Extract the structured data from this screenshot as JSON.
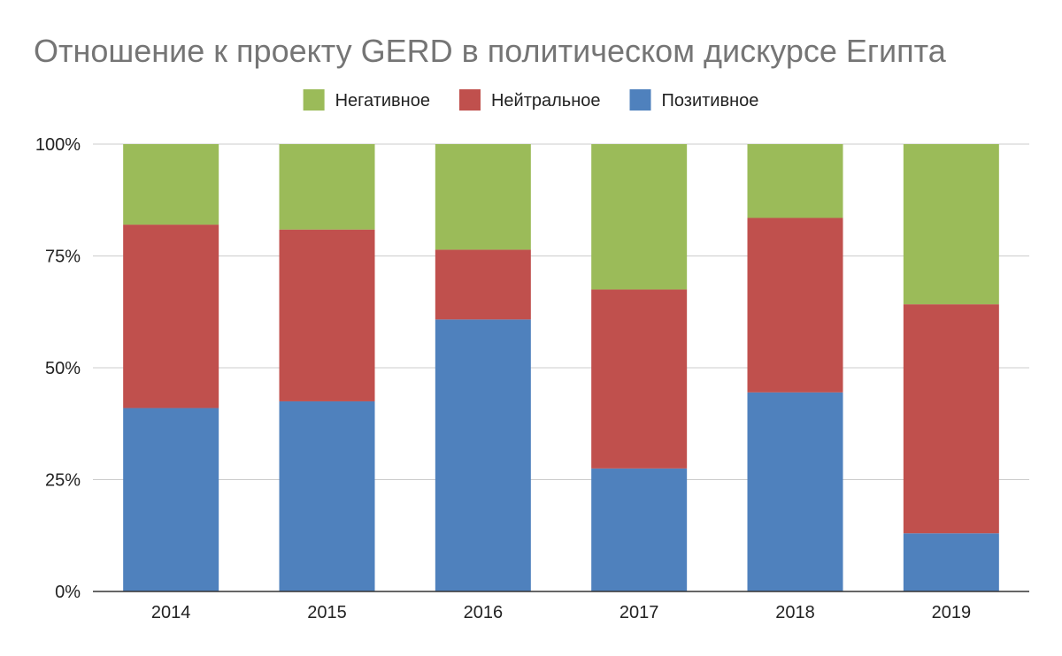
{
  "chart_data": {
    "type": "bar",
    "stacked": true,
    "percent_stacked": true,
    "title": "Отношение к проекту GERD в политическом дискурсе Египта",
    "xlabel": "",
    "ylabel": "",
    "categories": [
      "2014",
      "2015",
      "2016",
      "2017",
      "2018",
      "2019"
    ],
    "series": [
      {
        "name": "Позитивное",
        "color": "#4f81bd",
        "values": [
          41,
          42.5,
          60.8,
          27.5,
          44.5,
          13
        ]
      },
      {
        "name": "Нейтральное",
        "color": "#c0504d",
        "values": [
          41,
          38.4,
          15.6,
          40,
          39,
          51.2
        ]
      },
      {
        "name": "Негативное",
        "color": "#9bbb59",
        "values": [
          18,
          19.1,
          23.6,
          32.5,
          16.5,
          35.8
        ]
      }
    ],
    "legend_order": [
      "Негативное",
      "Нейтральное",
      "Позитивное"
    ],
    "legend_position": "top",
    "ylim": [
      0,
      100
    ],
    "yticks": [
      0,
      25,
      50,
      75,
      100
    ],
    "ytick_labels": [
      "0%",
      "25%",
      "50%",
      "75%",
      "100%"
    ],
    "grid": true
  }
}
